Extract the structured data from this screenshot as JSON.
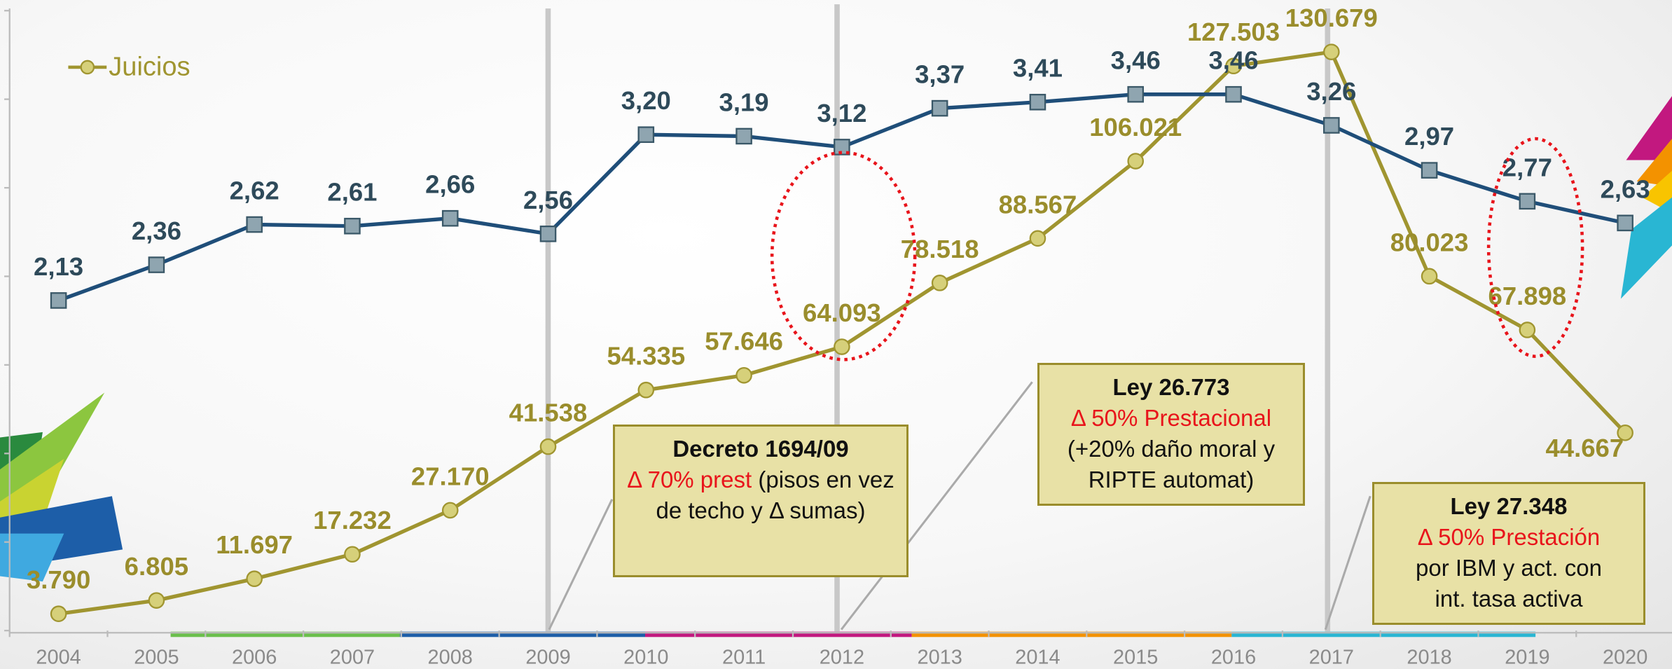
{
  "chart_data": {
    "type": "line",
    "categories": [
      "2004",
      "2005",
      "2006",
      "2007",
      "2008",
      "2009",
      "2010",
      "2011",
      "2012",
      "2013",
      "2014",
      "2015",
      "2016",
      "2017",
      "2018",
      "2019",
      "2020"
    ],
    "series": [
      {
        "name": "Juicios",
        "color": "#a09530",
        "marker": "circle",
        "values": [
          3790,
          6805,
          11697,
          17232,
          27170,
          41538,
          54335,
          57646,
          64093,
          78518,
          88567,
          106021,
          127503,
          130679,
          80023,
          67898,
          44667
        ],
        "value_labels": [
          "3.790",
          "6.805",
          "11.697",
          "17.232",
          "27.170",
          "41.538",
          "54.335",
          "57.646",
          "64.093",
          "78.518",
          "88.567",
          "106.021",
          "127.503",
          "130.679",
          "80.023",
          "67.898",
          "44.667"
        ]
      },
      {
        "color": "#1f4e79",
        "marker": "square",
        "axis": "y2",
        "values": [
          2.13,
          2.36,
          2.62,
          2.61,
          2.66,
          2.56,
          3.2,
          3.19,
          3.12,
          3.37,
          3.41,
          3.46,
          3.46,
          3.26,
          2.97,
          2.77,
          2.63
        ],
        "value_labels": [
          "2,13",
          "2,36",
          "2,62",
          "2,61",
          "2,66",
          "2,56",
          "3,20",
          "3,19",
          "3,12",
          "3,37",
          "3,41",
          "3,46",
          "3,46",
          "3,26",
          "2,97",
          "2,77",
          "2,63"
        ]
      }
    ],
    "ylim": [
      0,
      140000
    ],
    "yticks": [
      0,
      20000,
      40000,
      60000,
      80000,
      100000,
      120000,
      140000
    ],
    "y2lim": [
      0,
      4
    ],
    "legend": "top-left",
    "annotations": [
      {
        "title": "Decreto 1694/09",
        "highlight": "Δ 70% prest",
        "text": "(pisos en vez de techo y Δ sumas)"
      },
      {
        "title": "Ley 26.773",
        "highlight": "Δ 50% Prestacional",
        "text": "(+20% daño moral y RIPTE automat)"
      },
      {
        "title": "Ley 27.348",
        "highlight": "Δ 50% Prestación",
        "text": "por IBM y act. con int. tasa activa"
      }
    ]
  }
}
